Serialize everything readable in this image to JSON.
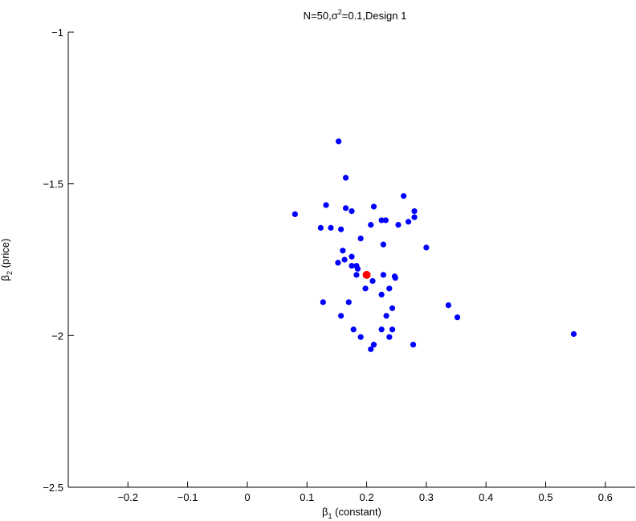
{
  "chart_data": {
    "type": "scatter",
    "title": {
      "prefix": "N=50,",
      "sigma": "σ",
      "sup": "2",
      "suffix": "=0.1,Design 1"
    },
    "xlabel": {
      "beta": "β",
      "sub": "1",
      "text": " (constant)"
    },
    "ylabel": {
      "beta": "β",
      "sub": "2",
      "text": " (price)"
    },
    "xlim": [
      -0.3,
      0.65
    ],
    "ylim": [
      -2.5,
      -1
    ],
    "xticks": [
      "-0.2",
      "-0.1",
      "0",
      "0.1",
      "0.2",
      "0.3",
      "0.4",
      "0.5",
      "0.6"
    ],
    "yticks": [
      "-1",
      "-1.5",
      "-2",
      "-2.5"
    ],
    "grid": false,
    "series": [
      {
        "color": "#0000ff",
        "x": [
          0.153,
          0.165,
          0.262,
          0.08,
          0.132,
          0.165,
          0.175,
          0.212,
          0.225,
          0.232,
          0.28,
          0.28,
          0.207,
          0.27,
          0.253,
          0.123,
          0.14,
          0.157,
          0.19,
          0.228,
          0.3,
          0.16,
          0.175,
          0.163,
          0.152,
          0.175,
          0.183,
          0.185,
          0.183,
          0.228,
          0.247,
          0.248,
          0.21,
          0.198,
          0.238,
          0.225,
          0.127,
          0.17,
          0.243,
          0.157,
          0.233,
          0.337,
          0.352,
          0.178,
          0.19,
          0.243,
          0.225,
          0.238,
          0.212,
          0.278,
          0.207,
          0.547
        ],
        "y": [
          -1.36,
          -1.48,
          -1.54,
          -1.6,
          -1.57,
          -1.58,
          -1.59,
          -1.575,
          -1.62,
          -1.62,
          -1.59,
          -1.61,
          -1.635,
          -1.625,
          -1.635,
          -1.645,
          -1.645,
          -1.65,
          -1.68,
          -1.7,
          -1.71,
          -1.72,
          -1.74,
          -1.75,
          -1.76,
          -1.77,
          -1.77,
          -1.78,
          -1.8,
          -1.8,
          -1.805,
          -1.81,
          -1.82,
          -1.845,
          -1.845,
          -1.865,
          -1.89,
          -1.89,
          -1.91,
          -1.935,
          -1.935,
          -1.9,
          -1.94,
          -1.98,
          -2.005,
          -1.98,
          -1.98,
          -2.005,
          -2.03,
          -2.03,
          -2.045,
          -1.995
        ]
      },
      {
        "color": "#ff0000",
        "x": [
          0.2
        ],
        "y": [
          -1.8
        ]
      }
    ]
  }
}
